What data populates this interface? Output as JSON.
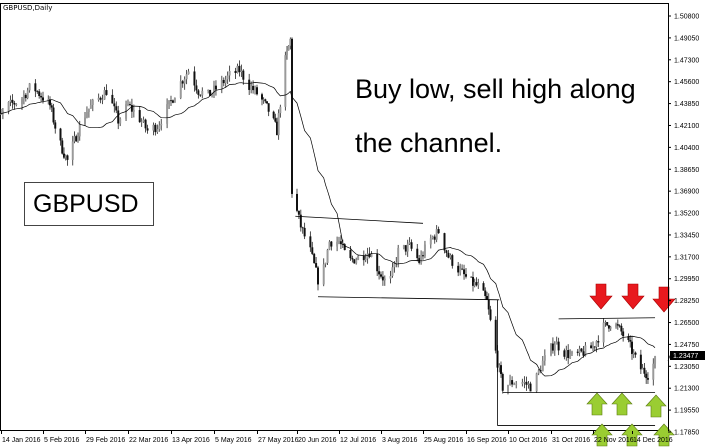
{
  "chart_title": "GBPUSD,Daily",
  "annotation_text": [
    "Buy low, sell high along",
    "the channel."
  ],
  "symbol_label": "GBPUSD",
  "colors": {
    "bull_arrow": "#9acd32",
    "bear_arrow": "#e8191e",
    "current_price_tag": "#000000"
  },
  "chart_data": {
    "type": "candlestick",
    "symbol": "GBPUSD",
    "timeframe": "Daily",
    "current_price": "1.23477",
    "ylim": [
      1.1785,
      1.508
    ],
    "price_ticks": [
      "1.50800",
      "1.49050",
      "1.47300",
      "1.45600",
      "1.43850",
      "1.42100",
      "1.40400",
      "1.38650",
      "1.36900",
      "1.35200",
      "1.33450",
      "1.31700",
      "1.29950",
      "1.28250",
      "1.26500",
      "1.24750",
      "1.23050",
      "1.21300",
      "1.19550",
      "1.17850"
    ],
    "date_ticks": [
      {
        "label": "14 Jan 2016",
        "date": "2016-01-14"
      },
      {
        "label": "5 Feb 2016",
        "date": "2016-02-05"
      },
      {
        "label": "29 Feb 2016",
        "date": "2016-02-29"
      },
      {
        "label": "22 Mar 2016",
        "date": "2016-03-22"
      },
      {
        "label": "13 Apr 2016",
        "date": "2016-04-13"
      },
      {
        "label": "5 May 2016",
        "date": "2016-05-05"
      },
      {
        "label": "27 May 2016",
        "date": "2016-05-27"
      },
      {
        "label": "20 Jun 2016",
        "date": "2016-06-20"
      },
      {
        "label": "12 Jul 2016",
        "date": "2016-07-12"
      },
      {
        "label": "3 Aug 2016",
        "date": "2016-08-03"
      },
      {
        "label": "25 Aug 2016",
        "date": "2016-08-25"
      },
      {
        "label": "16 Sep 2016",
        "date": "2016-09-16"
      },
      {
        "label": "10 Oct 2016",
        "date": "2016-10-10"
      },
      {
        "label": "31 Oct 2016",
        "date": "2016-10-31"
      },
      {
        "label": "22 Nov 2016",
        "date": "2016-11-22"
      },
      {
        "label": "14 Dec 2016",
        "date": "2016-12-14"
      }
    ],
    "approx_closes": [
      [
        "2016-01-07",
        1.441
      ],
      [
        "2016-01-12",
        1.4251
      ],
      [
        "2016-01-18",
        1.4371
      ],
      [
        "2016-01-24",
        1.441
      ],
      [
        "2016-01-30",
        1.453
      ],
      [
        "2016-02-04",
        1.445
      ],
      [
        "2016-02-09",
        1.4371
      ],
      [
        "2016-02-14",
        1.4092
      ],
      [
        "2016-02-19",
        1.3932
      ],
      [
        "2016-02-25",
        1.4171
      ],
      [
        "2016-03-01",
        1.4331
      ],
      [
        "2016-03-06",
        1.441
      ],
      [
        "2016-03-11",
        1.449
      ],
      [
        "2016-03-17",
        1.4251
      ],
      [
        "2016-03-22",
        1.4371
      ],
      [
        "2016-03-27",
        1.4291
      ],
      [
        "2016-04-01",
        1.4171
      ],
      [
        "2016-04-06",
        1.4211
      ],
      [
        "2016-04-12",
        1.4371
      ],
      [
        "2016-04-17",
        1.453
      ],
      [
        "2016-04-22",
        1.465
      ],
      [
        "2016-04-27",
        1.449
      ],
      [
        "2016-05-02",
        1.445
      ],
      [
        "2016-05-08",
        1.453
      ],
      [
        "2016-05-13",
        1.461
      ],
      [
        "2016-05-18",
        1.465
      ],
      [
        "2016-05-23",
        1.453
      ],
      [
        "2016-05-28",
        1.445
      ],
      [
        "2016-06-03",
        1.4331
      ],
      [
        "2016-06-08",
        1.4171
      ],
      [
        "2016-06-13",
        1.4729
      ],
      [
        "2016-06-16",
        1.4889
      ],
      [
        "2016-06-17",
        1.3693
      ],
      [
        "2016-06-22",
        1.3414
      ],
      [
        "2016-06-27",
        1.3215
      ],
      [
        "2016-07-02",
        1.2936
      ],
      [
        "2016-07-07",
        1.3295
      ],
      [
        "2016-07-12",
        1.3295
      ],
      [
        "2016-07-17",
        1.3135
      ],
      [
        "2016-07-23",
        1.3175
      ],
      [
        "2016-07-28",
        1.3215
      ],
      [
        "2016-08-02",
        1.3056
      ],
      [
        "2016-08-07",
        1.2936
      ],
      [
        "2016-08-12",
        1.3215
      ],
      [
        "2016-08-18",
        1.3255
      ],
      [
        "2016-08-23",
        1.3135
      ],
      [
        "2016-08-28",
        1.3295
      ],
      [
        "2016-09-02",
        1.3374
      ],
      [
        "2016-09-07",
        1.3175
      ],
      [
        "2016-09-13",
        1.3056
      ],
      [
        "2016-09-18",
        1.2976
      ],
      [
        "2016-09-23",
        1.2936
      ],
      [
        "2016-09-28",
        1.2817
      ],
      [
        "2016-10-04",
        1.2338
      ],
      [
        "2016-10-07",
        1.2139
      ],
      [
        "2016-10-12",
        1.2179
      ],
      [
        "2016-10-17",
        1.2179
      ],
      [
        "2016-10-22",
        1.2139
      ],
      [
        "2016-10-27",
        1.2338
      ],
      [
        "2016-11-02",
        1.2498
      ],
      [
        "2016-11-07",
        1.2418
      ],
      [
        "2016-11-12",
        1.2378
      ],
      [
        "2016-11-17",
        1.2418
      ],
      [
        "2016-11-22",
        1.2458
      ],
      [
        "2016-11-28",
        1.2617
      ],
      [
        "2016-12-03",
        1.2657
      ],
      [
        "2016-12-08",
        1.2577
      ],
      [
        "2016-12-13",
        1.2458
      ],
      [
        "2016-12-18",
        1.2298
      ],
      [
        "2016-12-23",
        1.2243
      ],
      [
        "2016-12-27",
        1.2348
      ]
    ],
    "moving_average": {
      "type": "SMA",
      "period": 20
    },
    "trendlines": [
      {
        "name": "channel-1-top",
        "from": [
          "2016-06-19",
          1.3494
        ],
        "to": [
          "2016-08-25",
          1.3438
        ]
      },
      {
        "name": "channel-1-bottom",
        "from": [
          "2016-07-01",
          1.2856
        ],
        "to": [
          "2016-10-05",
          1.2832
        ]
      },
      {
        "name": "channel-2-top",
        "from": [
          "2016-11-04",
          1.2681
        ],
        "to": [
          "2016-12-27",
          1.269
        ]
      },
      {
        "name": "channel-2-bottom",
        "from": [
          "2016-10-07",
          1.2099
        ],
        "to": [
          "2016-12-27",
          1.2099
        ]
      },
      {
        "name": "box-left",
        "from": [
          "2016-10-04",
          1.2832
        ],
        "to": [
          "2016-10-04",
          1.1836
        ]
      },
      {
        "name": "box-bottom",
        "from": [
          "2016-10-04",
          1.1836
        ],
        "to": [
          "2016-12-27",
          1.1836
        ]
      }
    ],
    "sell_arrows": 3,
    "buy_arrows": 6
  }
}
